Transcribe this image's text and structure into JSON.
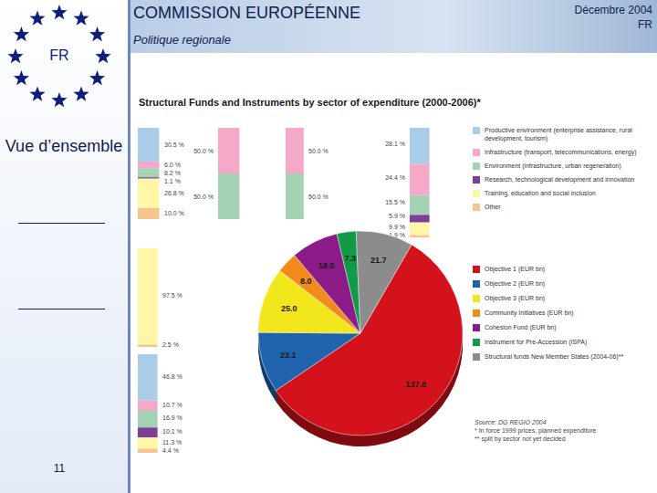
{
  "header": {
    "title": "COMMISSION EUROPÉENNE",
    "subtitle": "Politique regionale",
    "date": "Décembre 2004",
    "language": "FR"
  },
  "sidebar": {
    "flag_label": "FR",
    "section": "Vue d’ensemble",
    "page": "11"
  },
  "sector_legend": [
    {
      "name": "Productive environment (enterprise assistance, rural development, tourism)",
      "color": "#a9cce8"
    },
    {
      "name": "Infrastructure (transport, telecommunications, energy)",
      "color": "#f5a8c8"
    },
    {
      "name": "Environment (infrastructure, urban regeneration)",
      "color": "#a3d3b2"
    },
    {
      "name": "Research, technological development and innovation",
      "color": "#7d3f95"
    },
    {
      "name": "Training, education and social inclusion",
      "color": "#fff7a6"
    },
    {
      "name": "Other",
      "color": "#f8c48e"
    }
  ],
  "notes": [
    "Source: DG REGIO 2004",
    "* In force 1999 prices, planned expenditure",
    "** split by sector not yet decided"
  ],
  "chart_data": [
    {
      "type": "pie",
      "title": "Structural Funds and Instruments by sector of expenditure (2000-2006)*",
      "categories": [
        "Objective 1 (EUR bn)",
        "Objective 2 (EUR bn)",
        "Objective 3 (EUR bn)",
        "Community Initiatives (EUR bn)",
        "Cohesion Fund (EUR bn)",
        "Instrument for Pre-Accession (ISPA)",
        "Structural funds New Member States (2004-06)**"
      ],
      "values": [
        137.8,
        23.1,
        25.0,
        8.0,
        18.0,
        7.3,
        21.7
      ],
      "value_labels": [
        "137.8",
        "23.1",
        "25.0",
        "8.0",
        "18.0",
        "7.3",
        "21.7"
      ],
      "colors": [
        "#d4121b",
        "#1f63ad",
        "#f2e61c",
        "#f28a1c",
        "#8a1b87",
        "#119a47",
        "#8c8c8c"
      ],
      "data_labels": true,
      "legend": "right"
    },
    {
      "type": "bar",
      "stacked": true,
      "tick_labels": false,
      "data_labels": true,
      "values": [
        10.0,
        26.8,
        1.1,
        8.2,
        6.0,
        30.5
      ],
      "value_labels": [
        "10.0 %",
        "26.8 %",
        "1.1 %",
        "8.2 %",
        "6.0 %",
        "30.5 %"
      ],
      "colors": [
        "#f8c48e",
        "#fff7a6",
        "#7d3f95",
        "#a3d3b2",
        "#f5a8c8",
        "#a9cce8"
      ]
    },
    {
      "type": "bar",
      "stacked": true,
      "tick_labels": false,
      "data_labels": true,
      "values": [
        50.0,
        50.0
      ],
      "value_labels": [
        "50.0 %",
        "50.0 %"
      ],
      "colors": [
        "#a3d3b2",
        "#f5a8c8"
      ]
    },
    {
      "type": "bar",
      "stacked": true,
      "tick_labels": false,
      "data_labels": true,
      "values": [
        50.0,
        50.0
      ],
      "value_labels": [
        "50.0 %",
        "50.0 %"
      ],
      "colors": [
        "#a3d3b2",
        "#f5a8c8"
      ]
    },
    {
      "type": "bar",
      "stacked": true,
      "tick_labels": false,
      "data_labels": true,
      "values": [
        1.9,
        9.9,
        5.9,
        15.5,
        24.4,
        28.1
      ],
      "value_labels": [
        "1.9 %",
        "9.9 %",
        "5.9 %",
        "15.5 %",
        "24.4 %",
        "28.1 %"
      ],
      "colors": [
        "#f8c48e",
        "#fff7a6",
        "#7d3f95",
        "#a3d3b2",
        "#f5a8c8",
        "#a9cce8"
      ]
    },
    {
      "type": "bar",
      "stacked": true,
      "tick_labels": false,
      "data_labels": true,
      "values": [
        2.5,
        97.5
      ],
      "value_labels": [
        "2.5 %",
        "97.5 %"
      ],
      "colors": [
        "#f8c48e",
        "#fff7a6"
      ]
    },
    {
      "type": "bar",
      "stacked": true,
      "tick_labels": false,
      "data_labels": true,
      "values": [
        4.4,
        11.3,
        10.1,
        16.9,
        10.7,
        46.8
      ],
      "value_labels": [
        "4.4 %",
        "11.3 %",
        "10.1 %",
        "16.9 %",
        "10.7 %",
        "46.8 %"
      ],
      "colors": [
        "#f8c48e",
        "#fff7a6",
        "#7d3f95",
        "#a3d3b2",
        "#f5a8c8",
        "#a9cce8"
      ]
    }
  ]
}
